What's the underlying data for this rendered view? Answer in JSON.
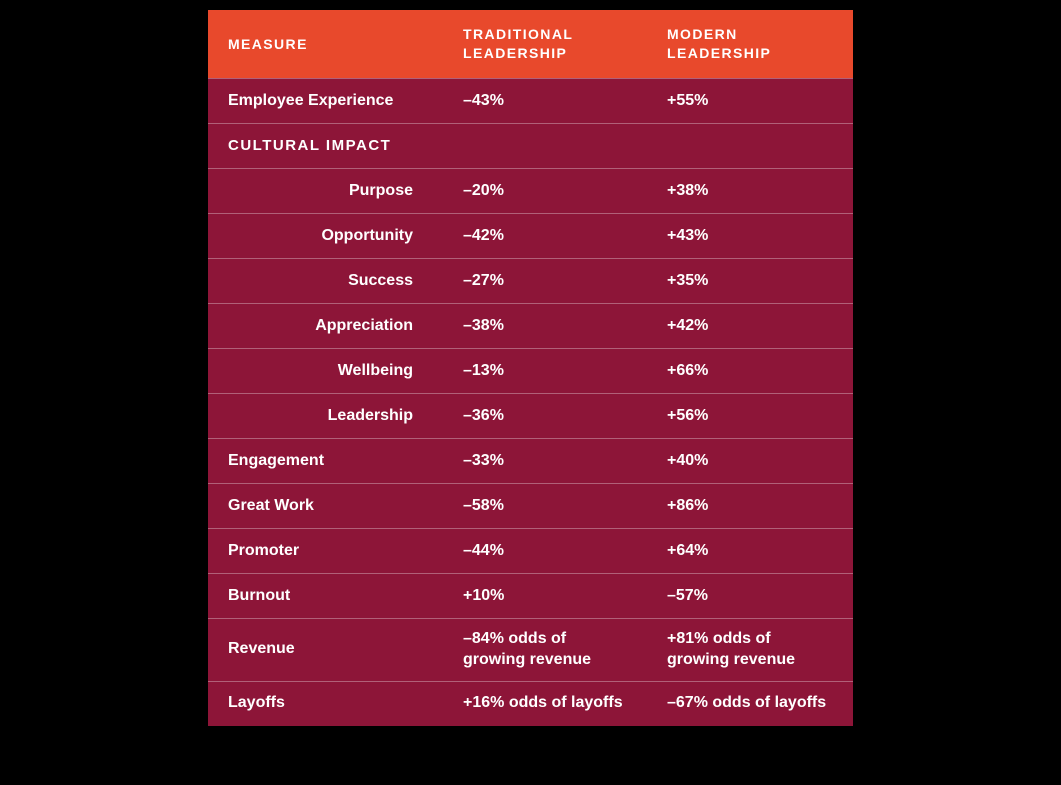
{
  "chart_data": {
    "type": "table",
    "title": "Traditional vs Modern Leadership outcomes by measure",
    "columns": [
      "MEASURE",
      "TRADITIONAL LEADERSHIP",
      "MODERN LEADERSHIP"
    ],
    "rows": [
      {
        "measure": "Employee Experience",
        "traditional": "–43%",
        "modern": "+55%",
        "type": "normal"
      },
      {
        "measure": "CULTURAL IMPACT",
        "traditional": "",
        "modern": "",
        "type": "section"
      },
      {
        "measure": "Purpose",
        "traditional": "–20%",
        "modern": "+38%",
        "type": "sub"
      },
      {
        "measure": "Opportunity",
        "traditional": "–42%",
        "modern": "+43%",
        "type": "sub"
      },
      {
        "measure": "Success",
        "traditional": "–27%",
        "modern": "+35%",
        "type": "sub"
      },
      {
        "measure": "Appreciation",
        "traditional": "–38%",
        "modern": "+42%",
        "type": "sub"
      },
      {
        "measure": "Wellbeing",
        "traditional": "–13%",
        "modern": "+66%",
        "type": "sub"
      },
      {
        "measure": "Leadership",
        "traditional": "–36%",
        "modern": "+56%",
        "type": "sub"
      },
      {
        "measure": "Engagement",
        "traditional": "–33%",
        "modern": "+40%",
        "type": "normal"
      },
      {
        "measure": "Great Work",
        "traditional": "–58%",
        "modern": "+86%",
        "type": "normal"
      },
      {
        "measure": "Promoter",
        "traditional": "–44%",
        "modern": "+64%",
        "type": "normal"
      },
      {
        "measure": "Burnout",
        "traditional": "+10%",
        "modern": "–57%",
        "type": "normal"
      },
      {
        "measure": "Revenue",
        "traditional": "–84% odds of growing revenue",
        "modern": "+81% odds of growing revenue",
        "type": "normal"
      },
      {
        "measure": "Layoffs",
        "traditional": "+16% odds of layoffs",
        "modern": "–67% odds of layoffs",
        "type": "normal"
      }
    ],
    "numeric_values": {
      "categories": [
        "Employee Experience",
        "Purpose",
        "Opportunity",
        "Success",
        "Appreciation",
        "Wellbeing",
        "Leadership",
        "Engagement",
        "Great Work",
        "Promoter",
        "Burnout",
        "Revenue (odds of growing revenue)",
        "Layoffs (odds of layoffs)"
      ],
      "series": [
        {
          "name": "Traditional Leadership",
          "values": [
            -43,
            -20,
            -42,
            -27,
            -38,
            -13,
            -36,
            -33,
            -58,
            -44,
            10,
            -84,
            16
          ]
        },
        {
          "name": "Modern Leadership",
          "values": [
            55,
            38,
            43,
            35,
            42,
            66,
            56,
            40,
            86,
            64,
            -57,
            81,
            -67
          ]
        }
      ],
      "unit": "%"
    },
    "layout": {
      "header_bg": "#E8492C",
      "body_bg": "#8D1538",
      "text_color": "#FFFFFF",
      "page_bg": "#000000"
    }
  }
}
